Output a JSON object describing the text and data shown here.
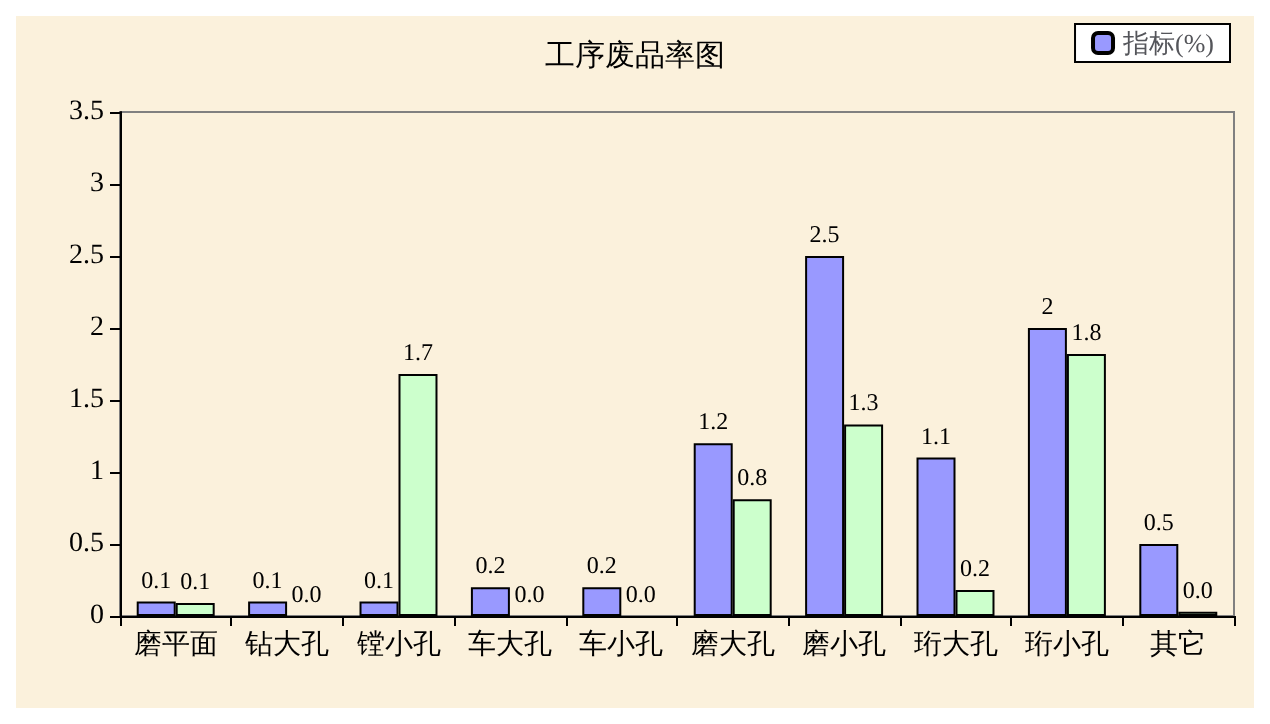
{
  "chart_data": {
    "type": "bar",
    "title": "工序废品率图",
    "categories": [
      "磨平面",
      "钻大孔",
      "镗小孔",
      "车大孔",
      "车小孔",
      "磨大孔",
      "磨小孔",
      "珩大孔",
      "珩小孔",
      "其它"
    ],
    "series": [
      {
        "name": "指标(%)",
        "color": "#9999ff",
        "values": [
          0.1,
          0.1,
          0.1,
          0.2,
          0.2,
          1.2,
          2.5,
          1.1,
          2,
          0.5
        ],
        "value_labels": [
          "0.1",
          "0.1",
          "0.1",
          "0.2",
          "0.2",
          "1.2",
          "2.5",
          "1.1",
          "2",
          "0.5"
        ]
      },
      {
        "color": "#ccffcc",
        "values": [
          0.09,
          0,
          1.68,
          0,
          0,
          0.81,
          1.33,
          0.18,
          1.82,
          0.03
        ],
        "value_labels": [
          "0.1",
          "0.0",
          "1.7",
          "0.0",
          "0.0",
          "0.8",
          "1.3",
          "0.2",
          "1.8",
          "0.0"
        ]
      }
    ],
    "ylim": [
      0,
      3.5
    ],
    "yticks": [
      0,
      0.5,
      1,
      1.5,
      2,
      2.5,
      3,
      3.5
    ],
    "grid": false,
    "legend": "top right"
  }
}
